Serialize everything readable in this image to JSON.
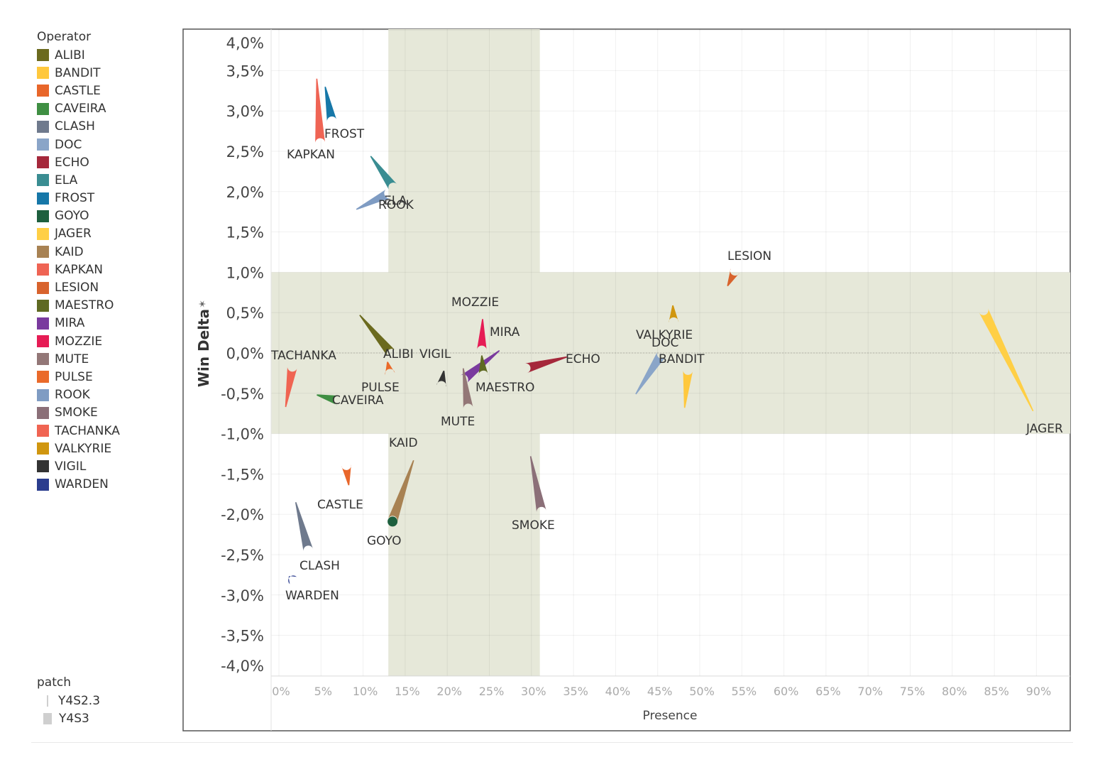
{
  "legend": {
    "title": "Operator",
    "items": [
      {
        "label": "ALIBI",
        "color": "#6b6a1e"
      },
      {
        "label": "BANDIT",
        "color": "#ffc83d"
      },
      {
        "label": "CASTLE",
        "color": "#e8662a"
      },
      {
        "label": "CAVEIRA",
        "color": "#3f8f43"
      },
      {
        "label": "CLASH",
        "color": "#6f7a8d"
      },
      {
        "label": "DOC",
        "color": "#8aa5c8"
      },
      {
        "label": "ECHO",
        "color": "#a5283b"
      },
      {
        "label": "ELA",
        "color": "#3a8d92"
      },
      {
        "label": "FROST",
        "color": "#1677a8"
      },
      {
        "label": "GOYO",
        "color": "#1d5f3e"
      },
      {
        "label": "JAGER",
        "color": "#ffcf45"
      },
      {
        "label": "KAID",
        "color": "#a88253"
      },
      {
        "label": "KAPKAN",
        "color": "#ef6454"
      },
      {
        "label": "LESION",
        "color": "#d8632d"
      },
      {
        "label": "MAESTRO",
        "color": "#5f6a22"
      },
      {
        "label": "MIRA",
        "color": "#7a3a9e"
      },
      {
        "label": "MOZZIE",
        "color": "#e61c55"
      },
      {
        "label": "MUTE",
        "color": "#937777"
      },
      {
        "label": "PULSE",
        "color": "#ea6a2a"
      },
      {
        "label": "ROOK",
        "color": "#7f9cc3"
      },
      {
        "label": "SMOKE",
        "color": "#8b6f78"
      },
      {
        "label": "TACHANKA",
        "color": "#f06452"
      },
      {
        "label": "VALKYRIE",
        "color": "#d0960f"
      },
      {
        "label": "VIGIL",
        "color": "#333333"
      },
      {
        "label": "WARDEN",
        "color": "#2b3d8e"
      }
    ]
  },
  "patch_legend": {
    "title": "patch",
    "items": [
      {
        "label": "Y4S2.3",
        "marker": "line"
      },
      {
        "label": "Y4S3",
        "marker": "square"
      }
    ]
  },
  "chart_data": {
    "type": "scatter",
    "subtype": "path-from-previous-patch",
    "xlabel": "Presence",
    "ylabel": "Win Delta",
    "ylabel_sort_glyph": "✶",
    "x_ticks": [
      "0%",
      "5%",
      "10%",
      "15%",
      "20%",
      "25%",
      "30%",
      "35%",
      "40%",
      "45%",
      "50%",
      "55%",
      "60%",
      "65%",
      "70%",
      "75%",
      "80%",
      "85%",
      "90%"
    ],
    "y_ticks": [
      "4,0%",
      "3,5%",
      "3,0%",
      "2,5%",
      "2,0%",
      "1,5%",
      "1,0%",
      "0,5%",
      "0,0%",
      "-0,5%",
      "-1,0%",
      "-1,5%",
      "-2,0%",
      "-2,5%",
      "-3,0%",
      "-3,5%",
      "-4,0%"
    ],
    "x_range": [
      0,
      0.95
    ],
    "y_range": [
      -0.04,
      0.04
    ],
    "grid": true,
    "reference_bands": [
      {
        "axis": "x",
        "from": 0.13,
        "to": 0.31,
        "color": "#e6e8d9"
      },
      {
        "axis": "y",
        "from": -0.01,
        "to": 0.01,
        "color": "#e6e8d9"
      }
    ],
    "zero_line": true,
    "series_order": [
      "Y4S2.3",
      "Y4S3"
    ],
    "operators": [
      {
        "name": "KAPKAN",
        "label": "KAPKAN",
        "x_from": 0.045,
        "y_from": 0.034,
        "x_to": 0.049,
        "y_to": 0.026
      },
      {
        "name": "FROST",
        "label": "FROST",
        "x_from": 0.055,
        "y_from": 0.033,
        "x_to": 0.063,
        "y_to": 0.0287
      },
      {
        "name": "ELA",
        "label": "ELA",
        "x_from": 0.109,
        "y_from": 0.0244,
        "x_to": 0.136,
        "y_to": 0.0205
      },
      {
        "name": "ROOK",
        "label": "ROOK",
        "x_from": 0.092,
        "y_from": 0.0178,
        "x_to": 0.131,
        "y_to": 0.0198
      },
      {
        "name": "LESION",
        "label": "LESION",
        "x_from": 0.533,
        "y_from": 0.0083,
        "x_to": 0.542,
        "y_to": 0.0102
      },
      {
        "name": "MOZZIE",
        "label": "MOZZIE",
        "x_from": 0.242,
        "y_from": 0.0042,
        "x_to": 0.241,
        "y_to": 0.0003
      },
      {
        "name": "MIRA",
        "label": "MIRA",
        "x_from": 0.262,
        "y_from": 0.0003,
        "x_to": 0.219,
        "y_to": -0.0033
      },
      {
        "name": "ALIBI",
        "label": "ALIBI",
        "x_from": 0.096,
        "y_from": 0.0047,
        "x_to": 0.134,
        "y_to": -0.0001
      },
      {
        "name": "VIGIL",
        "label": "VIGIL",
        "x_from": 0.196,
        "y_from": -0.0022,
        "x_to": 0.193,
        "y_to": -0.0041
      },
      {
        "name": "MAESTRO",
        "label": "MAESTRO",
        "x_from": 0.241,
        "y_from": -0.0003,
        "x_to": 0.243,
        "y_to": -0.0028
      },
      {
        "name": "MUTE",
        "label": "MUTE",
        "x_from": 0.219,
        "y_from": -0.0019,
        "x_to": 0.225,
        "y_to": -0.0069
      },
      {
        "name": "PULSE",
        "label": "PULSE",
        "x_from": 0.129,
        "y_from": -0.0011,
        "x_to": 0.132,
        "y_to": -0.0026
      },
      {
        "name": "CAVEIRA",
        "label": "CAVEIRA",
        "x_from": 0.045,
        "y_from": -0.0052,
        "x_to": 0.071,
        "y_to": -0.0059
      },
      {
        "name": "TACHANKA",
        "label": "TACHANKA",
        "x_from": 0.008,
        "y_from": -0.0067,
        "x_to": 0.016,
        "y_to": -0.0017
      },
      {
        "name": "ECHO",
        "label": "ECHO",
        "x_from": 0.342,
        "y_from": -0.0005,
        "x_to": 0.293,
        "y_to": -0.0019
      },
      {
        "name": "VALKYRIE",
        "label": "VALKYRIE",
        "x_from": 0.468,
        "y_from": 0.0059,
        "x_to": 0.469,
        "y_to": 0.0038
      },
      {
        "name": "DOC",
        "label": "DOC",
        "x_from": 0.424,
        "y_from": -0.0051,
        "x_to": 0.455,
        "y_to": -0.0001
      },
      {
        "name": "BANDIT",
        "label": "BANDIT",
        "x_from": 0.482,
        "y_from": -0.0068,
        "x_to": 0.486,
        "y_to": -0.0021
      },
      {
        "name": "JAGER",
        "label": "JAGER",
        "x_from": 0.896,
        "y_from": -0.0072,
        "x_to": 0.837,
        "y_to": 0.0053
      },
      {
        "name": "KAID",
        "label": "KAID",
        "x_from": 0.16,
        "y_from": -0.0133,
        "x_to": 0.135,
        "y_to": -0.0208
      },
      {
        "name": "CASTLE",
        "label": "CASTLE",
        "x_from": 0.083,
        "y_from": -0.0164,
        "x_to": 0.08,
        "y_to": -0.0139
      },
      {
        "name": "GOYO",
        "label": "GOYO",
        "x_from": 0.135,
        "y_from": -0.0209,
        "x_to": 0.135,
        "y_to": -0.0209
      },
      {
        "name": "SMOKE",
        "label": "SMOKE",
        "x_from": 0.299,
        "y_from": -0.0128,
        "x_to": 0.312,
        "y_to": -0.0197
      },
      {
        "name": "CLASH",
        "label": "CLASH",
        "x_from": 0.02,
        "y_from": -0.0185,
        "x_to": 0.035,
        "y_to": -0.0245
      },
      {
        "name": "WARDEN",
        "label": "WARDEN",
        "x_from": 0.012,
        "y_from": -0.0277,
        "x_to": 0.017,
        "y_to": -0.0282
      }
    ]
  }
}
